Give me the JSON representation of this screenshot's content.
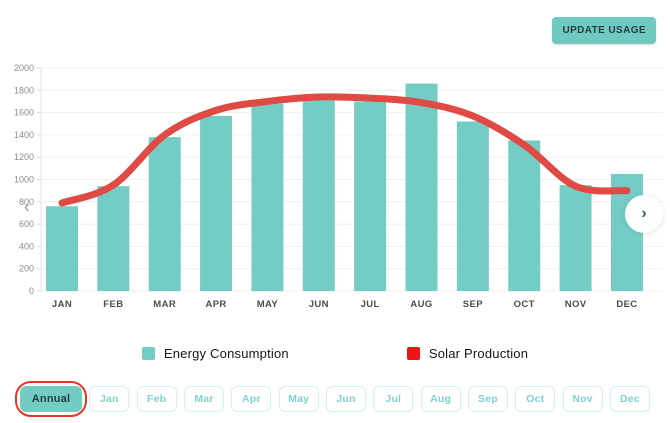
{
  "header": {
    "update_button": "UPDATE USAGE"
  },
  "chart_data": {
    "type": "bar",
    "categories": [
      "JAN",
      "FEB",
      "MAR",
      "APR",
      "MAY",
      "JUN",
      "JUL",
      "AUG",
      "SEP",
      "OCT",
      "NOV",
      "DEC"
    ],
    "series": [
      {
        "name": "Energy Consumption",
        "type": "bar",
        "color": "#74cdc4",
        "values": [
          760,
          940,
          1380,
          1570,
          1680,
          1710,
          1700,
          1860,
          1520,
          1350,
          950,
          1050
        ]
      },
      {
        "name": "Solar Production",
        "type": "line",
        "color": "#df4b44",
        "values": [
          790,
          950,
          1400,
          1620,
          1700,
          1740,
          1730,
          1690,
          1570,
          1310,
          940,
          900
        ]
      }
    ],
    "title": "",
    "xlabel": "",
    "ylabel": "",
    "ylim": [
      0,
      2000
    ],
    "ytick_step": 200,
    "grid": true,
    "legend_position": "bottom"
  },
  "legend": {
    "items": [
      {
        "label": "Energy Consumption",
        "color": "#74cdc4"
      },
      {
        "label": "Solar Production",
        "color": "#ee1414"
      }
    ]
  },
  "chart_nav": {
    "left": "‹",
    "right": "›"
  },
  "filters": {
    "selected": "Annual",
    "highlight_color": "#e73426",
    "items": [
      "Annual",
      "Jan",
      "Feb",
      "Mar",
      "Apr",
      "May",
      "Jun",
      "Jul",
      "Aug",
      "Sep",
      "Oct",
      "Nov",
      "Dec"
    ]
  }
}
